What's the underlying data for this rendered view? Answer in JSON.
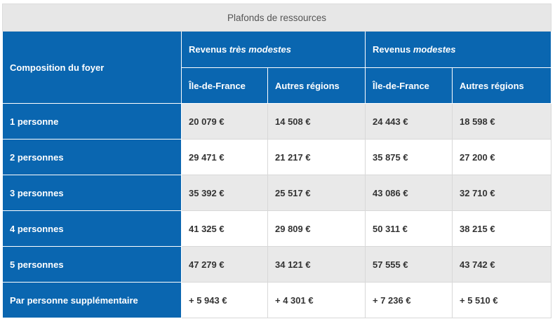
{
  "caption": "Plafonds de ressources",
  "header": {
    "composition": "Composition du foyer",
    "group1_prefix": "Revenus ",
    "group1_italic": "très modestes",
    "group2_prefix": "Revenus ",
    "group2_italic": "modestes",
    "sub1": "Île-de-France",
    "sub2": "Autres régions",
    "sub3": "Île-de-France",
    "sub4": "Autres régions"
  },
  "rows": [
    {
      "label": "1 personne",
      "v1": "20 079 €",
      "v2": "14 508 €",
      "v3": "24 443 €",
      "v4": "18 598 €"
    },
    {
      "label": "2 personnes",
      "v1": "29 471 €",
      "v2": "21 217 €",
      "v3": "35 875 €",
      "v4": "27 200 €"
    },
    {
      "label": "3 personnes",
      "v1": "35 392 €",
      "v2": "25 517 €",
      "v3": "43 086 €",
      "v4": "32 710 €"
    },
    {
      "label": "4 personnes",
      "v1": "41 325 €",
      "v2": "29 809 €",
      "v3": "50 311 €",
      "v4": "38 215 €"
    },
    {
      "label": "5 personnes",
      "v1": "47 279 €",
      "v2": "34 121 €",
      "v3": "57 555 €",
      "v4": "43 742 €"
    },
    {
      "label": "Par personne supplémentaire",
      "v1": "+ 5 943 €",
      "v2": "+ 4 301 €",
      "v3": "+ 7 236 €",
      "v4": "+ 5 510 €"
    }
  ],
  "colors": {
    "header_blue": "#0a66b0",
    "row_gray": "#e9e9e9",
    "caption_gray": "#e7e7e7"
  }
}
